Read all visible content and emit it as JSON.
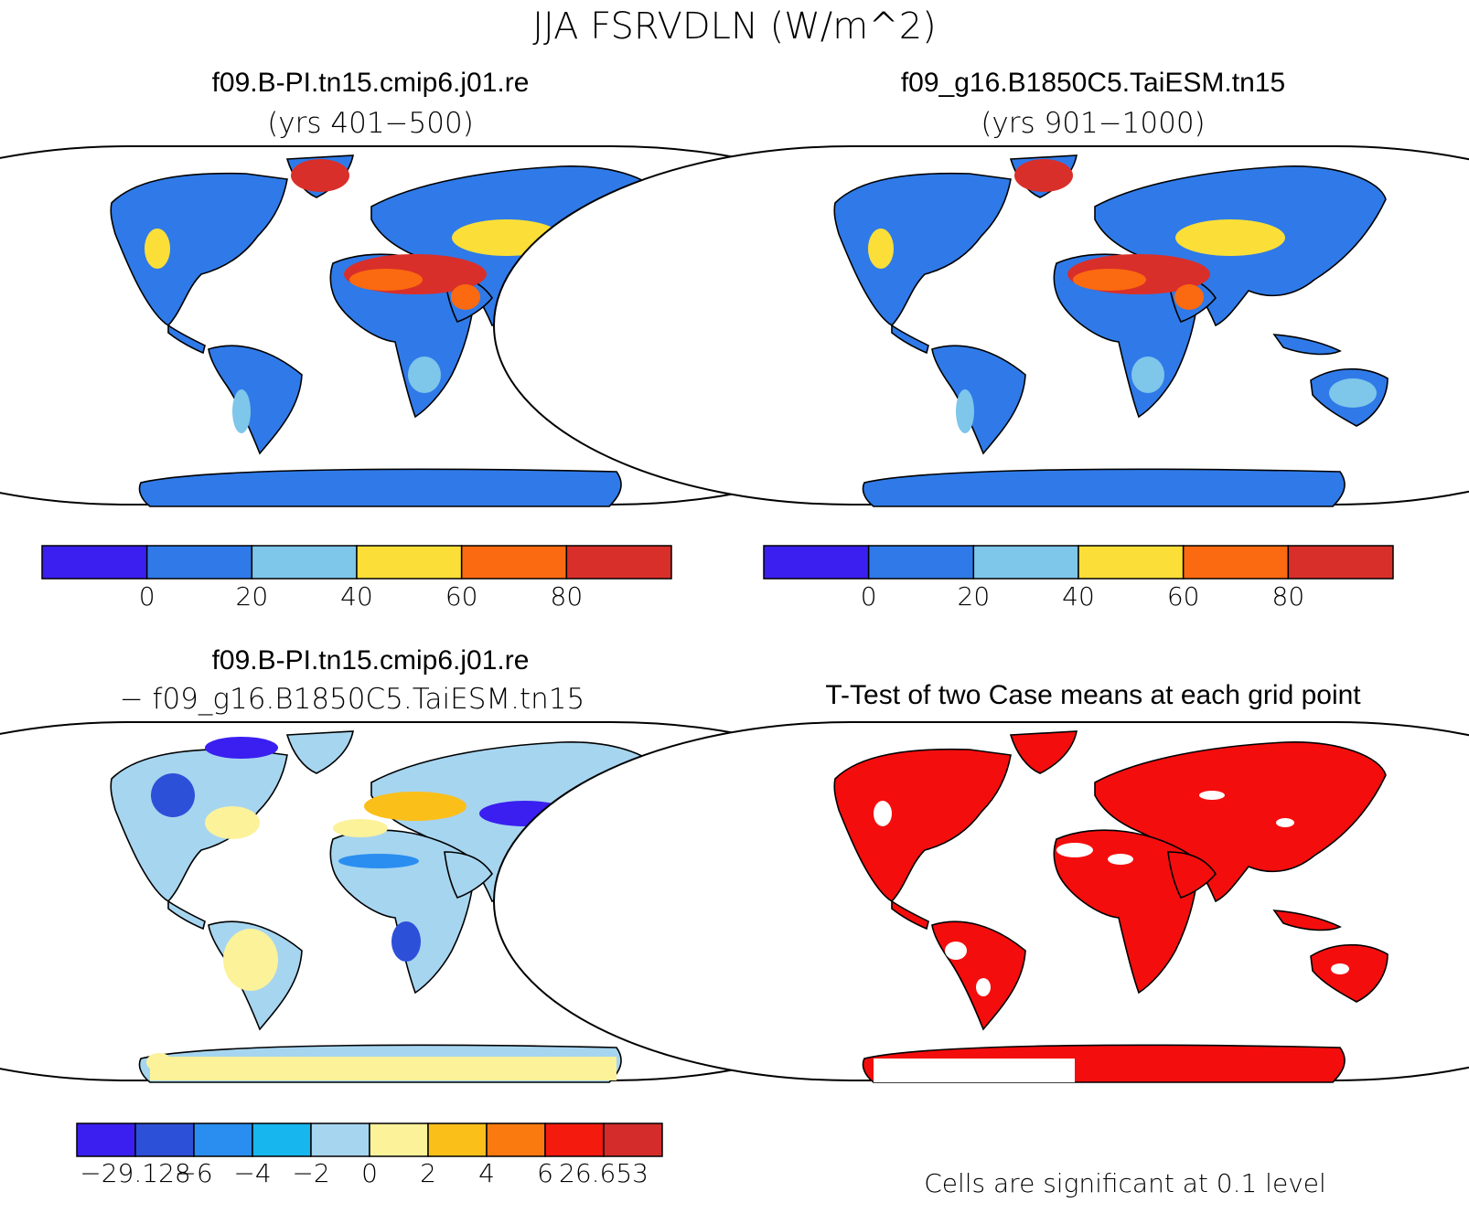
{
  "figure": {
    "main_title": "JJA FSRVDLN (W/m^2)"
  },
  "panels": [
    {
      "id": "case1",
      "title": "f09.B-PI.tn15.cmip6.j01.re",
      "subtitle": "(yrs 401−500)",
      "colorbar": {
        "colors": [
          "#3a1ff0",
          "#2f7ae8",
          "#7ec6ea",
          "#fbdf38",
          "#fb6a10",
          "#d92f2a"
        ],
        "tick_labels": [
          "0",
          "20",
          "40",
          "60",
          "80"
        ]
      }
    },
    {
      "id": "case2",
      "title": "f09_g16.B1850C5.TaiESM.tn15",
      "subtitle": "(yrs 901−1000)",
      "colorbar": {
        "colors": [
          "#3a1ff0",
          "#2f7ae8",
          "#7ec6ea",
          "#fbdf38",
          "#fb6a10",
          "#d92f2a"
        ],
        "tick_labels": [
          "0",
          "20",
          "40",
          "60",
          "80"
        ]
      }
    },
    {
      "id": "difference",
      "title": "f09.B-PI.tn15.cmip6.j01.re",
      "subtitle": "− f09_g16.B1850C5.TaiESM.tn15",
      "colorbar": {
        "colors": [
          "#3a1ff0",
          "#2d50d8",
          "#2a8ef0",
          "#18b6ee",
          "#a6d5f0",
          "#fbf29a",
          "#fbbf1a",
          "#fb7a10",
          "#f41a0e",
          "#d32c2b"
        ],
        "tick_labels": [
          "−29.128",
          "−6",
          "−4",
          "−2",
          "0",
          "2",
          "4",
          "6",
          "26.653"
        ]
      }
    },
    {
      "id": "ttest",
      "title": "T-Test of two Case means at each grid point",
      "footnote": "Cells are significant at 0.1 level"
    }
  ]
}
